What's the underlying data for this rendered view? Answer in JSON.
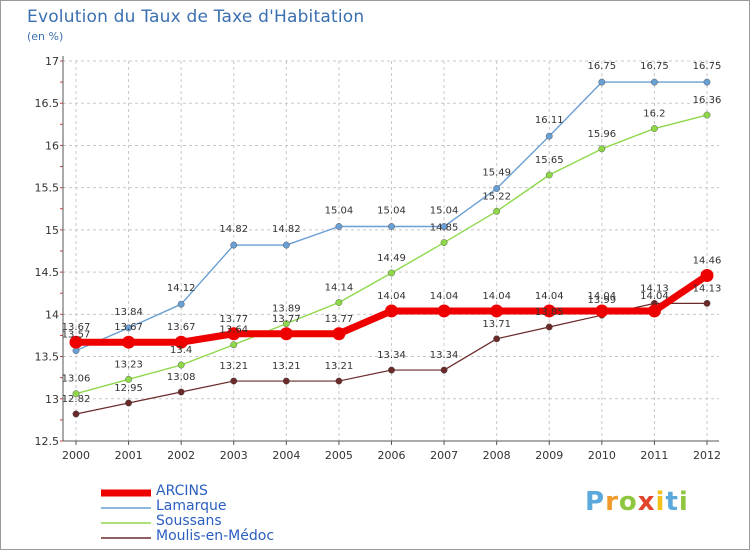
{
  "title": "Evolution du Taux de Taxe d'Habitation",
  "unit": "(en %)",
  "brand": {
    "letters": [
      "P",
      "r",
      "o",
      "x",
      "i",
      "t",
      "i"
    ],
    "colors": [
      "#5aa8dc",
      "#f09a2a",
      "#8ec63f",
      "#e0462c",
      "#f2c21b",
      "#5aa8dc",
      "#8ec63f"
    ]
  },
  "chart_data": {
    "type": "line",
    "x": [
      "2000",
      "2001",
      "2002",
      "2003",
      "2004",
      "2005",
      "2006",
      "2007",
      "2008",
      "2009",
      "2010",
      "2011",
      "2012"
    ],
    "ylim": [
      12.5,
      17
    ],
    "yticks": [
      "12.5",
      "13",
      "13.5",
      "14",
      "14.5",
      "15",
      "15.5",
      "16",
      "16.5",
      "17"
    ],
    "grid": true,
    "legend": "bottom-left",
    "series": [
      {
        "name": "ARCINS",
        "color": "#ee0000",
        "width": 7,
        "values": [
          13.67,
          13.67,
          13.67,
          13.77,
          13.77,
          13.77,
          14.04,
          14.04,
          14.04,
          14.04,
          14.04,
          14.04,
          14.46
        ],
        "labels": [
          "13.67",
          "13.67",
          "13.67",
          "13.77",
          "13.77",
          "13.77",
          "14.04",
          "14.04",
          "14.04",
          "14.04",
          "14.04",
          "14.04",
          "14.46"
        ]
      },
      {
        "name": "Lamarque",
        "color": "#6a9fd4",
        "width": 1.4,
        "values": [
          13.57,
          13.84,
          14.12,
          14.82,
          14.82,
          15.04,
          15.04,
          15.04,
          15.49,
          16.11,
          16.75,
          16.75,
          16.75
        ],
        "labels": [
          "13.57",
          "13.84",
          "14.12",
          "14.82",
          "14.82",
          "15.04",
          "15.04",
          "15.04",
          "15.49",
          "16.11",
          "16.75",
          "16.75",
          "16.75"
        ]
      },
      {
        "name": "Soussans",
        "color": "#8ed84a",
        "width": 1.4,
        "values": [
          13.06,
          13.23,
          13.4,
          13.64,
          13.89,
          14.14,
          14.49,
          14.85,
          15.22,
          15.65,
          15.96,
          16.2,
          16.36
        ],
        "labels": [
          "13.06",
          "13.23",
          "13.4",
          "13.64",
          "13.89",
          "14.14",
          "14.49",
          "14.85",
          "15.22",
          "15.65",
          "15.96",
          "16.2",
          "16.36"
        ]
      },
      {
        "name": "Moulis-en-Médoc",
        "color": "#6b2a2a",
        "width": 1.2,
        "values": [
          12.82,
          12.95,
          13.08,
          13.21,
          13.21,
          13.21,
          13.34,
          13.34,
          13.71,
          13.85,
          13.99,
          14.13,
          14.13
        ],
        "labels": [
          "12.82",
          "12.95",
          "13.08",
          "13.21",
          "13.21",
          "13.21",
          "13.34",
          "13.34",
          "13.71",
          "13.85",
          "13.99",
          "14.13",
          "14.13"
        ]
      }
    ]
  }
}
